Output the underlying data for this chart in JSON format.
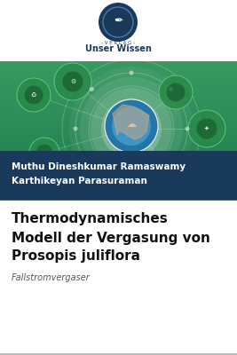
{
  "publisher_name": "Unser Wissen",
  "publisher_sub": "- V E R L A G -",
  "author_line1": "Muthu Dineshkumar Ramaswamy",
  "author_line2": "Karthikeyan Parasuraman",
  "title_line1": "Thermodynamisches",
  "title_line2": "Modell der Vergasung von",
  "title_line3": "Prosopis juliflora",
  "subtitle": "Fallstromvergaser",
  "bg_color": "#ffffff",
  "author_bg_color": "#1a3a5c",
  "author_text_color": "#ffffff",
  "title_text_color": "#111111",
  "subtitle_text_color": "#555555",
  "logo_circle_color": "#1a3a5c",
  "publisher_text_color": "#1a3a5c"
}
